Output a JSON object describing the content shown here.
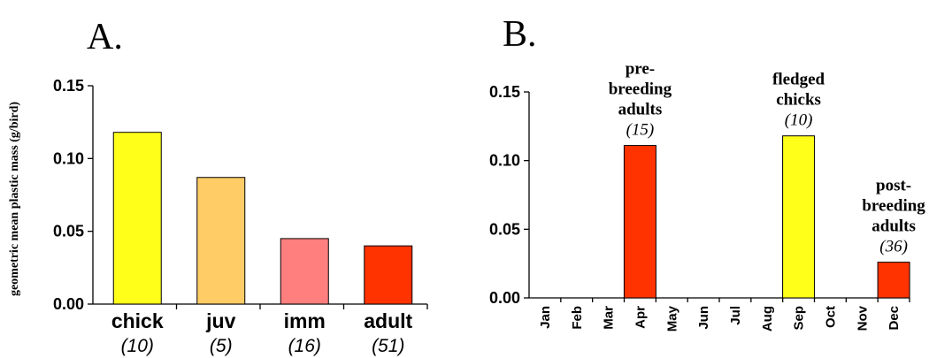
{
  "chart_data": [
    {
      "panel": "A.",
      "type": "bar",
      "ylabel": "geometric mean plastic mass (g/bird)",
      "ylim": [
        0,
        0.15
      ],
      "yticks": [
        "0.00",
        "0.05",
        "0.10",
        "0.15"
      ],
      "categories": [
        "chick",
        "juv",
        "imm",
        "adult"
      ],
      "sample_sizes": [
        "(10)",
        "(5)",
        "(16)",
        "(51)"
      ],
      "values": [
        0.118,
        0.087,
        0.045,
        0.04
      ],
      "colors": [
        "#ffff1a",
        "#ffcc66",
        "#ff7f7f",
        "#ff3300"
      ]
    },
    {
      "panel": "B.",
      "type": "bar",
      "ylim": [
        0,
        0.15
      ],
      "yticks": [
        "0.00",
        "0.05",
        "0.10",
        "0.15"
      ],
      "categories": [
        "Jan",
        "Feb",
        "Mar",
        "Apr",
        "May",
        "Jun",
        "Jul",
        "Aug",
        "Sep",
        "Oct",
        "Nov",
        "Dec"
      ],
      "values": [
        null,
        null,
        null,
        0.111,
        null,
        null,
        null,
        null,
        0.118,
        null,
        null,
        0.026
      ],
      "colors": [
        "",
        "",
        "",
        "#ff3300",
        "",
        "",
        "",
        "",
        "#ffff1a",
        "",
        "",
        "#ff3300"
      ],
      "annotations": [
        {
          "month": "Apr",
          "lines": [
            "pre-",
            "breeding",
            "adults"
          ],
          "n": "(15)"
        },
        {
          "month": "Sep",
          "lines": [
            "fledged",
            "chicks"
          ],
          "n": "(10)"
        },
        {
          "month": "Dec",
          "lines": [
            "post-",
            "breeding",
            "adults"
          ],
          "n": "(36)"
        }
      ]
    }
  ]
}
